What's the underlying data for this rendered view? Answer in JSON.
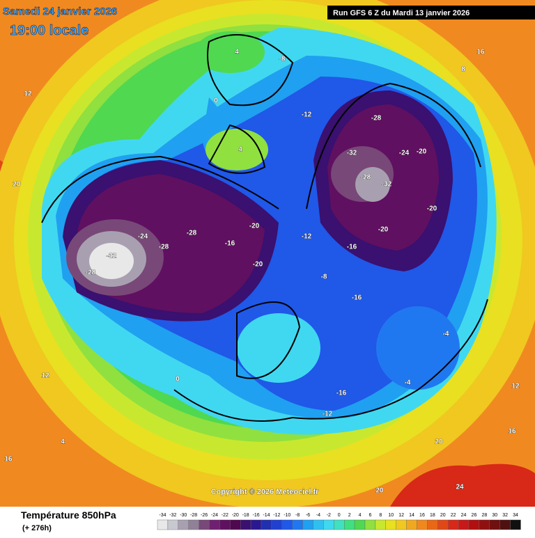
{
  "header": {
    "date": "Samedi 24 janvier 2026",
    "time": "19:00 locale",
    "run": "Run GFS 6 Z du Mardi 13 janvier 2026"
  },
  "copyright": "Copyright © 2026 Meteociel.fr",
  "footer": {
    "title": "Température 850hPa",
    "lead": "(+ 276h)"
  },
  "scale": {
    "ticks": [
      -34,
      -32,
      -30,
      -28,
      -26,
      -24,
      -22,
      -20,
      -18,
      -16,
      -14,
      -12,
      -10,
      -8,
      -6,
      -4,
      -2,
      0,
      2,
      4,
      6,
      8,
      10,
      12,
      14,
      16,
      18,
      20,
      22,
      24,
      26,
      28,
      30,
      32,
      34
    ],
    "colors": [
      "#e8e8e8",
      "#c8c8d0",
      "#a8a0b0",
      "#908098",
      "#784878",
      "#702070",
      "#601060",
      "#500850",
      "#3a1070",
      "#2a1890",
      "#2030b0",
      "#2040d0",
      "#2058e8",
      "#2078f0",
      "#20a0f0",
      "#30c0f0",
      "#40d8f0",
      "#40e0c0",
      "#40e080",
      "#50d850",
      "#90e040",
      "#c8e830",
      "#e8e020",
      "#f0c820",
      "#f0a820",
      "#f08820",
      "#e86818",
      "#e04818",
      "#d82818",
      "#c81818",
      "#b01010",
      "#901010",
      "#701010",
      "#501010",
      "#101010"
    ]
  },
  "map_labels": [
    -32,
    -28,
    -24,
    -28,
    -28,
    -16,
    -20,
    -20,
    -28,
    -32,
    -28,
    -32,
    -24,
    -20,
    -20,
    -20,
    -12,
    -16,
    -8,
    -16,
    -16,
    -12,
    -12,
    -8,
    4,
    0,
    4,
    0,
    -4,
    -4,
    8,
    16,
    12,
    20,
    12,
    4,
    20,
    24,
    20,
    12,
    16,
    16
  ]
}
